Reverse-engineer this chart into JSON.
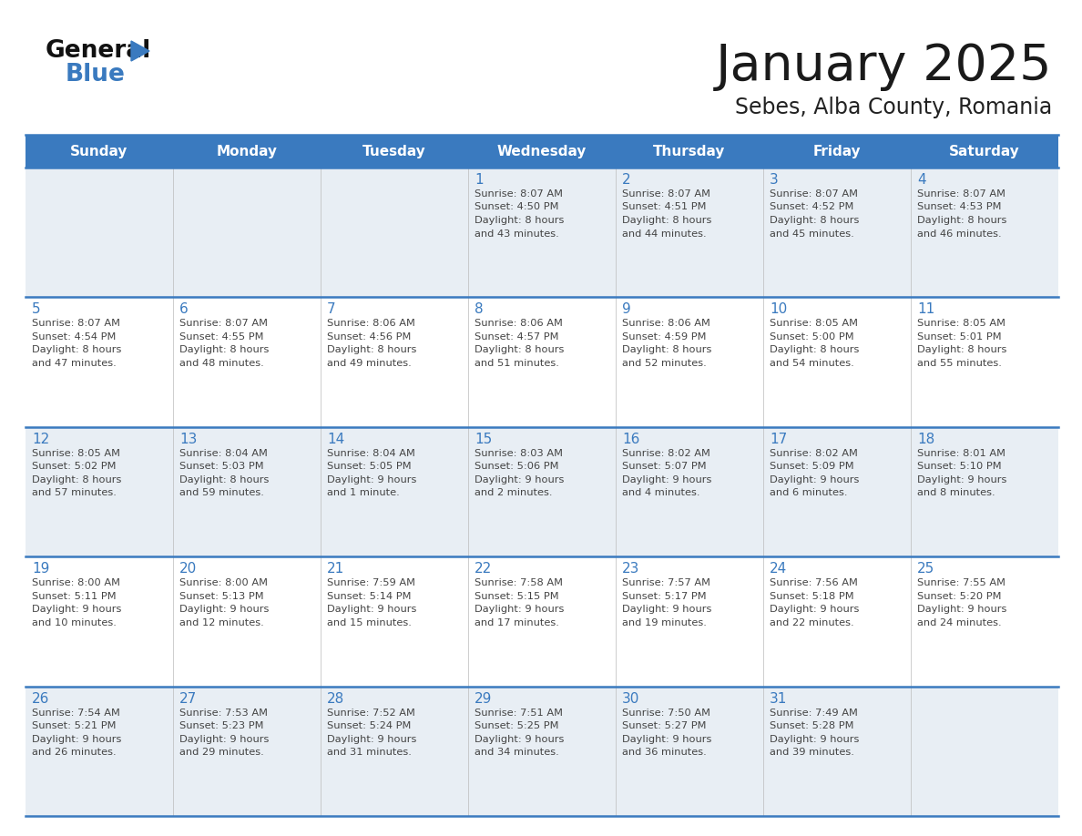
{
  "title": "January 2025",
  "subtitle": "Sebes, Alba County, Romania",
  "header_color": "#3a7abf",
  "header_text_color": "#ffffff",
  "cell_bg_even": "#e8eef4",
  "cell_bg_odd": "#ffffff",
  "day_number_color": "#3a7abf",
  "text_color": "#444444",
  "line_color": "#3a7abf",
  "border_color": "#3a7abf",
  "days_of_week": [
    "Sunday",
    "Monday",
    "Tuesday",
    "Wednesday",
    "Thursday",
    "Friday",
    "Saturday"
  ],
  "calendar_data": [
    [
      {
        "day": null,
        "sunrise": null,
        "sunset": null,
        "daylight": null
      },
      {
        "day": null,
        "sunrise": null,
        "sunset": null,
        "daylight": null
      },
      {
        "day": null,
        "sunrise": null,
        "sunset": null,
        "daylight": null
      },
      {
        "day": 1,
        "sunrise": "8:07 AM",
        "sunset": "4:50 PM",
        "daylight": "8 hours\nand 43 minutes."
      },
      {
        "day": 2,
        "sunrise": "8:07 AM",
        "sunset": "4:51 PM",
        "daylight": "8 hours\nand 44 minutes."
      },
      {
        "day": 3,
        "sunrise": "8:07 AM",
        "sunset": "4:52 PM",
        "daylight": "8 hours\nand 45 minutes."
      },
      {
        "day": 4,
        "sunrise": "8:07 AM",
        "sunset": "4:53 PM",
        "daylight": "8 hours\nand 46 minutes."
      }
    ],
    [
      {
        "day": 5,
        "sunrise": "8:07 AM",
        "sunset": "4:54 PM",
        "daylight": "8 hours\nand 47 minutes."
      },
      {
        "day": 6,
        "sunrise": "8:07 AM",
        "sunset": "4:55 PM",
        "daylight": "8 hours\nand 48 minutes."
      },
      {
        "day": 7,
        "sunrise": "8:06 AM",
        "sunset": "4:56 PM",
        "daylight": "8 hours\nand 49 minutes."
      },
      {
        "day": 8,
        "sunrise": "8:06 AM",
        "sunset": "4:57 PM",
        "daylight": "8 hours\nand 51 minutes."
      },
      {
        "day": 9,
        "sunrise": "8:06 AM",
        "sunset": "4:59 PM",
        "daylight": "8 hours\nand 52 minutes."
      },
      {
        "day": 10,
        "sunrise": "8:05 AM",
        "sunset": "5:00 PM",
        "daylight": "8 hours\nand 54 minutes."
      },
      {
        "day": 11,
        "sunrise": "8:05 AM",
        "sunset": "5:01 PM",
        "daylight": "8 hours\nand 55 minutes."
      }
    ],
    [
      {
        "day": 12,
        "sunrise": "8:05 AM",
        "sunset": "5:02 PM",
        "daylight": "8 hours\nand 57 minutes."
      },
      {
        "day": 13,
        "sunrise": "8:04 AM",
        "sunset": "5:03 PM",
        "daylight": "8 hours\nand 59 minutes."
      },
      {
        "day": 14,
        "sunrise": "8:04 AM",
        "sunset": "5:05 PM",
        "daylight": "9 hours\nand 1 minute."
      },
      {
        "day": 15,
        "sunrise": "8:03 AM",
        "sunset": "5:06 PM",
        "daylight": "9 hours\nand 2 minutes."
      },
      {
        "day": 16,
        "sunrise": "8:02 AM",
        "sunset": "5:07 PM",
        "daylight": "9 hours\nand 4 minutes."
      },
      {
        "day": 17,
        "sunrise": "8:02 AM",
        "sunset": "5:09 PM",
        "daylight": "9 hours\nand 6 minutes."
      },
      {
        "day": 18,
        "sunrise": "8:01 AM",
        "sunset": "5:10 PM",
        "daylight": "9 hours\nand 8 minutes."
      }
    ],
    [
      {
        "day": 19,
        "sunrise": "8:00 AM",
        "sunset": "5:11 PM",
        "daylight": "9 hours\nand 10 minutes."
      },
      {
        "day": 20,
        "sunrise": "8:00 AM",
        "sunset": "5:13 PM",
        "daylight": "9 hours\nand 12 minutes."
      },
      {
        "day": 21,
        "sunrise": "7:59 AM",
        "sunset": "5:14 PM",
        "daylight": "9 hours\nand 15 minutes."
      },
      {
        "day": 22,
        "sunrise": "7:58 AM",
        "sunset": "5:15 PM",
        "daylight": "9 hours\nand 17 minutes."
      },
      {
        "day": 23,
        "sunrise": "7:57 AM",
        "sunset": "5:17 PM",
        "daylight": "9 hours\nand 19 minutes."
      },
      {
        "day": 24,
        "sunrise": "7:56 AM",
        "sunset": "5:18 PM",
        "daylight": "9 hours\nand 22 minutes."
      },
      {
        "day": 25,
        "sunrise": "7:55 AM",
        "sunset": "5:20 PM",
        "daylight": "9 hours\nand 24 minutes."
      }
    ],
    [
      {
        "day": 26,
        "sunrise": "7:54 AM",
        "sunset": "5:21 PM",
        "daylight": "9 hours\nand 26 minutes."
      },
      {
        "day": 27,
        "sunrise": "7:53 AM",
        "sunset": "5:23 PM",
        "daylight": "9 hours\nand 29 minutes."
      },
      {
        "day": 28,
        "sunrise": "7:52 AM",
        "sunset": "5:24 PM",
        "daylight": "9 hours\nand 31 minutes."
      },
      {
        "day": 29,
        "sunrise": "7:51 AM",
        "sunset": "5:25 PM",
        "daylight": "9 hours\nand 34 minutes."
      },
      {
        "day": 30,
        "sunrise": "7:50 AM",
        "sunset": "5:27 PM",
        "daylight": "9 hours\nand 36 minutes."
      },
      {
        "day": 31,
        "sunrise": "7:49 AM",
        "sunset": "5:28 PM",
        "daylight": "9 hours\nand 39 minutes."
      },
      {
        "day": null,
        "sunrise": null,
        "sunset": null,
        "daylight": null
      }
    ]
  ]
}
